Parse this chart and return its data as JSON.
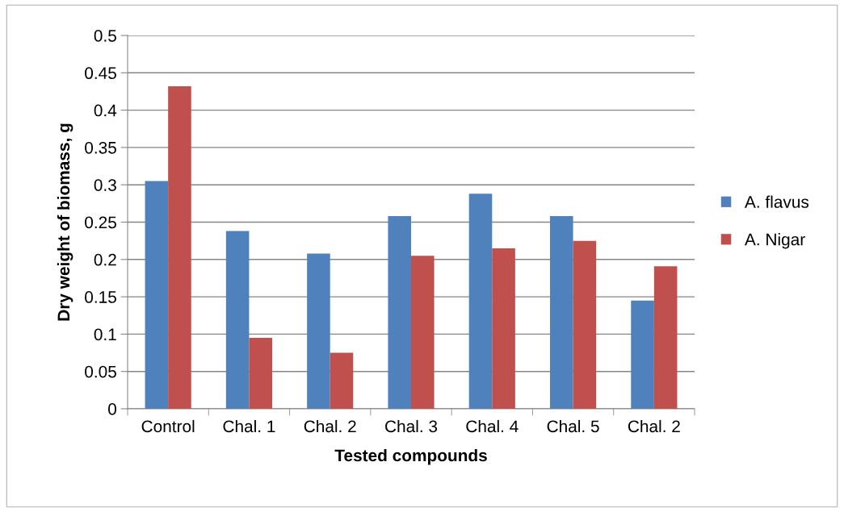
{
  "chart_data": {
    "type": "bar",
    "xlabel": "Tested compounds",
    "ylabel": "Dry weight of biomass, g",
    "categories": [
      "Control",
      "Chal. 1",
      "Chal. 2",
      "Chal. 3",
      "Chal. 4",
      "Chal. 5",
      "Chal. 2"
    ],
    "series": [
      {
        "name": "A. flavus",
        "color": "#4f81bd",
        "values": [
          0.305,
          0.238,
          0.208,
          0.258,
          0.288,
          0.258,
          0.145
        ]
      },
      {
        "name": "A. Nigar",
        "color": "#c0504d",
        "values": [
          0.432,
          0.095,
          0.075,
          0.205,
          0.215,
          0.225,
          0.191
        ]
      }
    ],
    "ylim": [
      0,
      0.5
    ],
    "yticks": [
      0,
      0.05,
      0.1,
      0.15,
      0.2,
      0.25,
      0.3,
      0.35,
      0.4,
      0.45,
      0.5
    ],
    "grid": "y",
    "legend": "right"
  }
}
